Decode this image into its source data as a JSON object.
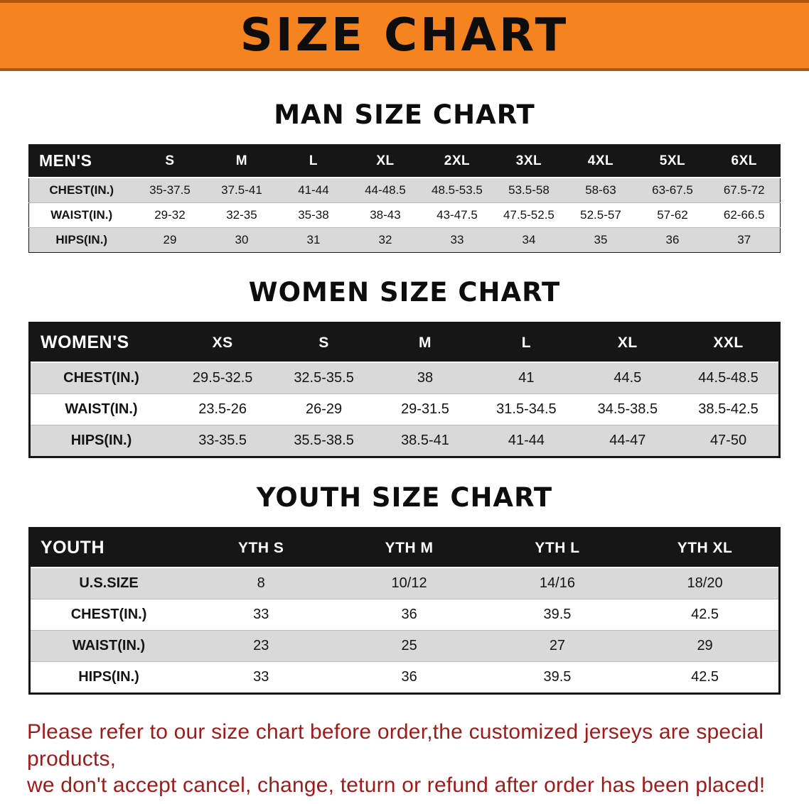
{
  "banner": {
    "title": "SIZE CHART"
  },
  "colors": {
    "banner_bg": "#f5831f",
    "header_bg": "#161616",
    "row_shade": "#d9d9d9",
    "disclaimer": "#9c1b1b"
  },
  "sections": [
    {
      "id": "men",
      "heading": "MAN SIZE CHART",
      "table": {
        "header": [
          "MEN'S",
          "S",
          "M",
          "L",
          "XL",
          "2XL",
          "3XL",
          "4XL",
          "5XL",
          "6XL"
        ],
        "rows": [
          {
            "label": "CHEST(IN.)",
            "values": [
              "35-37.5",
              "37.5-41",
              "41-44",
              "44-48.5",
              "48.5-53.5",
              "53.5-58",
              "58-63",
              "63-67.5",
              "67.5-72"
            ]
          },
          {
            "label": "WAIST(IN.)",
            "values": [
              "29-32",
              "32-35",
              "35-38",
              "38-43",
              "43-47.5",
              "47.5-52.5",
              "52.5-57",
              "57-62",
              "62-66.5"
            ]
          },
          {
            "label": "HIPS(IN.)",
            "values": [
              "29",
              "30",
              "31",
              "32",
              "33",
              "34",
              "35",
              "36",
              "37"
            ]
          }
        ]
      }
    },
    {
      "id": "women",
      "heading": "WOMEN SIZE CHART",
      "table": {
        "header": [
          "WOMEN'S",
          "XS",
          "S",
          "M",
          "L",
          "XL",
          "XXL"
        ],
        "rows": [
          {
            "label": "CHEST(IN.)",
            "values": [
              "29.5-32.5",
              "32.5-35.5",
              "38",
              "41",
              "44.5",
              "44.5-48.5"
            ]
          },
          {
            "label": "WAIST(IN.)",
            "values": [
              "23.5-26",
              "26-29",
              "29-31.5",
              "31.5-34.5",
              "34.5-38.5",
              "38.5-42.5"
            ]
          },
          {
            "label": "HIPS(IN.)",
            "values": [
              "33-35.5",
              "35.5-38.5",
              "38.5-41",
              "41-44",
              "44-47",
              "47-50"
            ]
          }
        ]
      }
    },
    {
      "id": "youth",
      "heading": "YOUTH SIZE CHART",
      "table": {
        "header": [
          "YOUTH",
          "YTH S",
          "YTH M",
          "YTH L",
          "YTH XL"
        ],
        "rows": [
          {
            "label": "U.S.SIZE",
            "values": [
              "8",
              "10/12",
              "14/16",
              "18/20"
            ]
          },
          {
            "label": "CHEST(IN.)",
            "values": [
              "33",
              "36",
              "39.5",
              "42.5"
            ]
          },
          {
            "label": "WAIST(IN.)",
            "values": [
              "23",
              "25",
              "27",
              "29"
            ]
          },
          {
            "label": "HIPS(IN.)",
            "values": [
              "33",
              "36",
              "39.5",
              "42.5"
            ]
          }
        ]
      }
    }
  ],
  "disclaimer": {
    "line1": "Please refer to our size chart before order,the customized jerseys are special products,",
    "line2": "we don't accept cancel, change, teturn or refund after order has been placed!"
  }
}
